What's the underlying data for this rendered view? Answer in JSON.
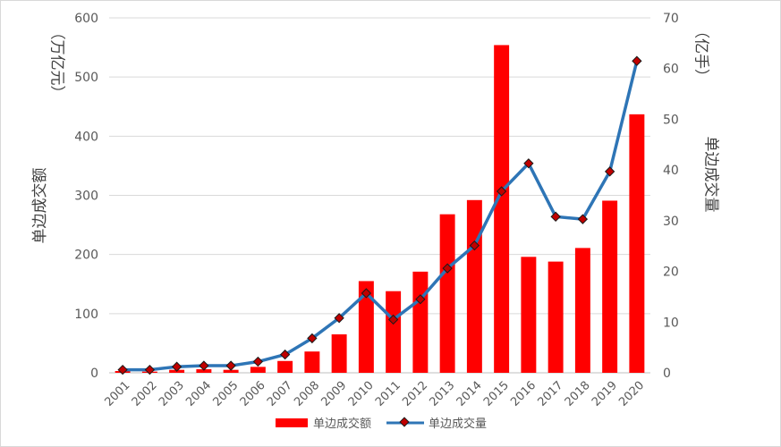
{
  "chart_data": {
    "type": "bar",
    "categories": [
      "2001",
      "2002",
      "2003",
      "2004",
      "2005",
      "2006",
      "2007",
      "2008",
      "2009",
      "2010",
      "2011",
      "2012",
      "2013",
      "2014",
      "2015",
      "2016",
      "2017",
      "2018",
      "2019",
      "2020"
    ],
    "series": [
      {
        "name": "单边成交额",
        "type": "bar",
        "axis": "left",
        "color": "#ff0000",
        "values": [
          3,
          2,
          5,
          6,
          5,
          10,
          20,
          36,
          65,
          155,
          138,
          171,
          268,
          292,
          554,
          196,
          188,
          211,
          291,
          437
        ]
      },
      {
        "name": "单边成交量",
        "type": "line",
        "axis": "right",
        "color": "#2e75b6",
        "marker_color": "#c00000",
        "values": [
          0.6,
          0.6,
          1.2,
          1.4,
          1.4,
          2.2,
          3.6,
          6.8,
          10.8,
          15.7,
          10.5,
          14.5,
          20.6,
          25.1,
          35.8,
          41.3,
          30.8,
          30.3,
          39.7,
          61.5
        ]
      }
    ],
    "y_left": {
      "label": "单边成交额",
      "unit": "（万亿元）",
      "min": 0,
      "max": 600,
      "ticks": [
        0,
        100,
        200,
        300,
        400,
        500,
        600
      ]
    },
    "y_right": {
      "label": "单边成交量",
      "unit": "（亿手）",
      "min": 0,
      "max": 70,
      "ticks": [
        0,
        10,
        20,
        30,
        40,
        50,
        60,
        70
      ]
    },
    "grid": true,
    "legend_position": "bottom"
  }
}
